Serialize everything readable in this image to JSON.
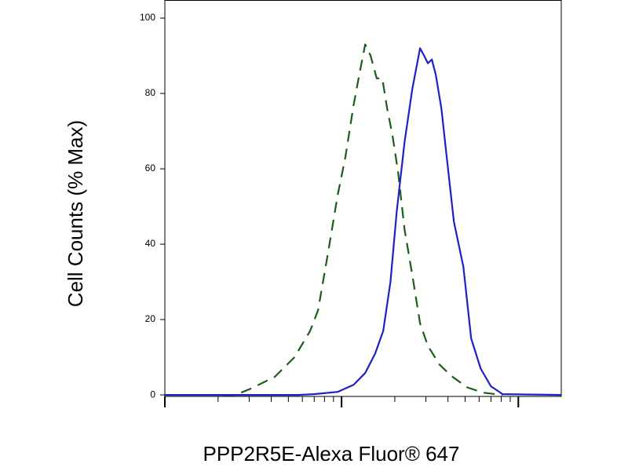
{
  "chart_data": {
    "type": "line",
    "y_label": "Cell Counts (% Max)",
    "x_label": "PPP2R5E-Alexa Fluor® 647",
    "xscale": "log",
    "xlim": [
      1,
      175
    ],
    "xticks": [
      1,
      10,
      100
    ],
    "ylim": [
      -0.4,
      104.8
    ],
    "yticks": [
      0,
      20,
      40,
      60,
      80,
      100
    ],
    "series": [
      {
        "color": "#1a5c1a",
        "dash": true,
        "x": [
          2.15,
          2.51,
          3.08,
          4.19,
          5.41,
          6.64,
          7.36,
          8.4,
          9.5,
          10.5,
          11.7,
          12.6,
          13.6,
          14.6,
          15.8,
          17.0,
          18.1,
          19.4,
          20.9,
          22.7,
          25.1,
          27.8,
          30.8,
          35.9,
          41.9,
          51.4,
          63.1,
          81.5
        ],
        "values": [
          0,
          0,
          1.7,
          4.8,
          10,
          17,
          22.5,
          38,
          53,
          63,
          77,
          85,
          93,
          90,
          84,
          84,
          76,
          69,
          59,
          44,
          32,
          19,
          13,
          8,
          5,
          2,
          0.6,
          0
        ]
      },
      {
        "color": "#1f1fc8",
        "dash": false,
        "x": [
          1,
          5.7,
          6.99,
          9.5,
          11.7,
          13.6,
          15.5,
          17.2,
          18.9,
          20.5,
          22.7,
          25.1,
          27.8,
          29.3,
          30.8,
          32.4,
          34.1,
          36.7,
          39.8,
          43.2,
          48.9,
          54.1,
          61.2,
          69.9,
          81.5,
          175
        ],
        "values": [
          0,
          0,
          0.2,
          0.8,
          2.7,
          5.8,
          11,
          17,
          30,
          48.5,
          67,
          81,
          92,
          90,
          88,
          89,
          85,
          76,
          61,
          46,
          34,
          15,
          7,
          2.3,
          0.2,
          0
        ]
      }
    ]
  }
}
